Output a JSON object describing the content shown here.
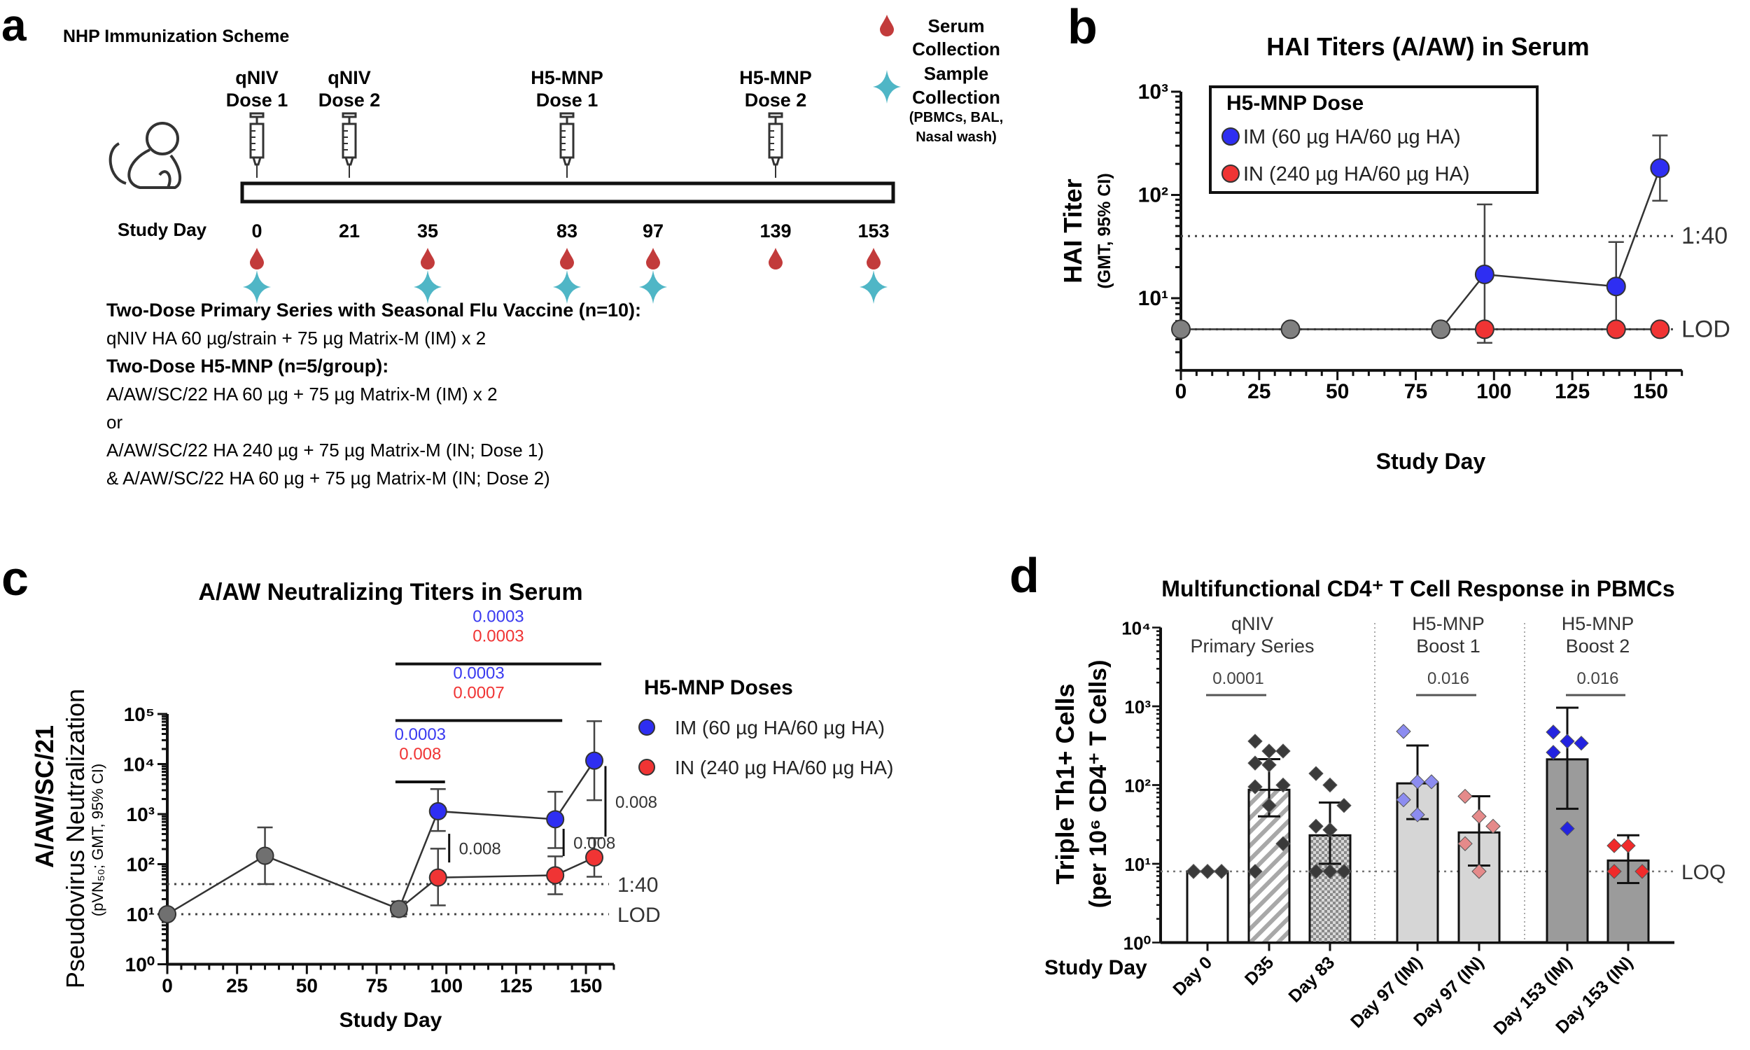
{
  "panel_a": {
    "label": "a",
    "title": "NHP Immunization Scheme",
    "doses": [
      {
        "line1": "qNIV",
        "line2": "Dose 1",
        "day": 0
      },
      {
        "line1": "qNIV",
        "line2": "Dose 2",
        "day": 21
      },
      {
        "line1": "H5-MNP",
        "line2": "Dose 1",
        "day": 83
      },
      {
        "line1": "H5-MNP",
        "line2": "Dose 2",
        "day": 139
      }
    ],
    "study_day_label": "Study Day",
    "days": [
      {
        "day": "0",
        "serum": true,
        "sample": true
      },
      {
        "day": "21",
        "serum": false,
        "sample": false
      },
      {
        "day": "35",
        "serum": true,
        "sample": true
      },
      {
        "day": "83",
        "serum": true,
        "sample": true
      },
      {
        "day": "97",
        "serum": true,
        "sample": true
      },
      {
        "day": "139",
        "serum": true,
        "sample": false
      },
      {
        "day": "153",
        "serum": true,
        "sample": true
      }
    ],
    "legend": {
      "serum": [
        "Serum",
        "Collection"
      ],
      "sample": [
        "Sample",
        "Collection",
        "(PBMCs, BAL,",
        "Nasal wash)"
      ]
    },
    "description": [
      {
        "text": "Two-Dose Primary Series with Seasonal Flu Vaccine (n=10):",
        "bold": true
      },
      {
        "text": "qNIV HA 60 µg/strain + 75 µg Matrix-M (IM) x 2",
        "bold": false
      },
      {
        "text": "Two-Dose H5-MNP (n=5/group):",
        "bold": true
      },
      {
        "text": "A/AW/SC/22 HA 60 µg + 75 µg Matrix-M (IM) x 2",
        "bold": false
      },
      {
        "text": "or",
        "bold": false
      },
      {
        "text": "A/AW/SC/22 HA 240 µg + 75 µg Matrix-M (IN; Dose 1)",
        "bold": false
      },
      {
        "text": "& A/AW/SC/22 HA 60 µg + 75 µg Matrix-M (IN; Dose 2)",
        "bold": false
      }
    ],
    "colors": {
      "serum": "#c23b3b",
      "sample": "#4fb6c6"
    }
  },
  "chart_data": [
    {
      "panel": "b",
      "type": "line",
      "title": "HAI Titers (A/AW) in Serum",
      "xlabel": "Study Day",
      "ylabel": "HAI Titer",
      "ylabel_sub": "(GMT, 95% CI)",
      "xlim": [
        0,
        160
      ],
      "ylim": [
        2,
        1000
      ],
      "yscale": "log",
      "xticks": [
        0,
        25,
        50,
        75,
        100,
        125,
        150
      ],
      "xtick_labels": [
        "0",
        "25",
        "50",
        "75",
        "100",
        "125",
        "150"
      ],
      "yticks": [
        10,
        100,
        1000
      ],
      "ytick_labels": [
        "10¹",
        "10²",
        "10³"
      ],
      "grid": false,
      "reference_lines": [
        {
          "value": 40,
          "label": "1:40"
        },
        {
          "value": 5,
          "label": "LOD"
        }
      ],
      "legend": {
        "title": "H5-MNP Dose",
        "placement": "top-left"
      },
      "series": [
        {
          "key": "baseline",
          "color": "#808080",
          "x": [
            0,
            35,
            83
          ],
          "y": [
            5,
            5,
            5
          ],
          "err_low": [
            null,
            null,
            null
          ],
          "err_high": [
            null,
            null,
            null
          ]
        },
        {
          "key": "IM",
          "name": "IM (60 µg HA/60 µg HA)",
          "color": "#2e2ef2",
          "x": [
            97,
            139,
            153
          ],
          "y": [
            17,
            13,
            182
          ],
          "err_low": [
            3.7,
            5,
            88
          ],
          "err_high": [
            81,
            35,
            377
          ]
        },
        {
          "key": "IN",
          "name": "IN (240 µg HA/60 µg HA)",
          "color": "#f03434",
          "x": [
            97,
            139,
            153
          ],
          "y": [
            5,
            5,
            5
          ],
          "err_low": [
            null,
            null,
            null
          ],
          "err_high": [
            null,
            null,
            null
          ]
        }
      ]
    },
    {
      "panel": "c",
      "type": "line",
      "title": "A/AW Neutralizing Titers in Serum",
      "xlabel": "Study Day",
      "ylabel": "A/AW/SC/21",
      "ylabel2": "Pseudovirus Neutralization",
      "ylabel_sub": "(pVN₅₀; GMT, 95% CI)",
      "xlim": [
        0,
        160
      ],
      "ylim": [
        1,
        100000
      ],
      "yscale": "log",
      "xticks": [
        0,
        25,
        50,
        75,
        100,
        125,
        150
      ],
      "xtick_labels": [
        "0",
        "25",
        "50",
        "75",
        "100",
        "125",
        "150"
      ],
      "yticks": [
        1,
        10,
        100,
        1000,
        10000,
        100000
      ],
      "ytick_labels": [
        "10⁰",
        "10¹",
        "10²",
        "10³",
        "10⁴",
        "10⁵"
      ],
      "grid": false,
      "reference_lines": [
        {
          "value": 40,
          "label": "1:40"
        },
        {
          "value": 10,
          "label": "LOD"
        }
      ],
      "legend": {
        "title": "H5-MNP Doses",
        "placement": "right"
      },
      "series": [
        {
          "key": "baseline",
          "color": "#707070",
          "x": [
            0,
            35,
            83
          ],
          "y": [
            10,
            147,
            12.7
          ],
          "err_low": [
            null,
            40,
            9
          ],
          "err_high": [
            null,
            543,
            18
          ]
        },
        {
          "key": "IM",
          "name": "IM (60 µg HA/60 µg HA)",
          "color": "#2e2ef2",
          "x": [
            97,
            139,
            153
          ],
          "y": [
            1140,
            790,
            11700
          ],
          "err_low": [
            460,
            210,
            1900
          ],
          "err_high": [
            3160,
            2790,
            72000
          ]
        },
        {
          "key": "IN",
          "name": "IN (240 µg HA/60 µg HA)",
          "color": "#f03434",
          "x": [
            97,
            139,
            153
          ],
          "y": [
            54,
            60,
            136
          ],
          "err_low": [
            15,
            25,
            56
          ],
          "err_high": [
            204,
            143,
            330
          ]
        }
      ],
      "brackets": [
        {
          "x1": 83,
          "x2": 153,
          "y": 1000000,
          "p": [
            {
              "text": "0.0003",
              "color": "#3a3af0"
            },
            {
              "text": "0.0003",
              "color": "#f03434"
            }
          ]
        },
        {
          "x1": 83,
          "x2": 139,
          "y": 74000,
          "p": [
            {
              "text": "0.0003",
              "color": "#3a3af0"
            },
            {
              "text": "0.0007",
              "color": "#f03434"
            }
          ]
        },
        {
          "x1": 83,
          "x2": 97,
          "y": 4400,
          "p": [
            {
              "text": "0.0003",
              "color": "#3a3af0"
            },
            {
              "text": "0.008",
              "color": "#f03434"
            }
          ]
        }
      ],
      "vertical_brackets": [
        {
          "x": 101,
          "y1": 108,
          "y2": 405,
          "text": "0.008"
        },
        {
          "x": 142,
          "y1": 145,
          "y2": 508,
          "text": "0.008"
        },
        {
          "x": 157,
          "y1": 355,
          "y2": 9100,
          "text": "0.008"
        }
      ]
    },
    {
      "panel": "d",
      "type": "bar",
      "title": "Multifunctional CD4⁺ T Cell Response in PBMCs",
      "xlabel": "Study Day",
      "ylabel": "Triple Th1+ Cells",
      "ylabel_sub": "(per 10⁶ CD4⁺ T Cells)",
      "ylim": [
        1,
        10000
      ],
      "yscale": "log",
      "yticks": [
        1,
        10,
        100,
        1000,
        10000
      ],
      "ytick_labels": [
        "10⁰",
        "10¹",
        "10²",
        "10³",
        "10⁴"
      ],
      "categories": [
        "Day 0",
        "D35",
        "Day 83",
        "Day 97 (IM)",
        "Day 97 (IN)",
        "Day 153 (IM)",
        "Day 153 (IN)"
      ],
      "values": [
        8,
        87,
        23,
        105,
        25,
        212,
        11
      ],
      "err_low": [
        8,
        40,
        10,
        37,
        9.5,
        50,
        5.7
      ],
      "err_high": [
        8,
        213,
        60,
        318,
        72,
        960,
        23
      ],
      "bar_fills": [
        "white",
        "hatch",
        "checker",
        "#d6d6d6",
        "#d6d6d6",
        "#9b9b9b",
        "#9b9b9b"
      ],
      "point_colors": [
        "#3a3a3a",
        "#3a3a3a",
        "#3a3a3a",
        "#8c8cf0",
        "#e58a8a",
        "#2323e0",
        "#f02a2a"
      ],
      "points": [
        [
          8,
          8,
          8,
          8,
          8,
          8,
          8,
          8,
          8,
          8
        ],
        [
          360,
          270,
          270,
          190,
          180,
          100,
          95,
          55,
          18,
          8
        ],
        [
          140,
          100,
          55,
          30,
          27,
          8,
          8,
          8,
          8,
          8
        ],
        [
          480,
          110,
          110,
          65,
          42
        ],
        [
          72,
          40,
          30,
          18,
          8
        ],
        [
          470,
          360,
          340,
          260,
          28
        ],
        [
          17,
          17,
          8,
          8
        ]
      ],
      "reference_lines": [
        {
          "value": 8,
          "label": "LOQ"
        }
      ],
      "groups": [
        {
          "line1": "qNIV",
          "line2": "Primary Series",
          "p": "0.0001",
          "from": 0,
          "to": 1
        },
        {
          "line1": "H5-MNP",
          "line2": "Boost 1",
          "p": "0.016",
          "from": 3,
          "to": 4
        },
        {
          "line1": "H5-MNP",
          "line2": "Boost 2",
          "p": "0.016",
          "from": 5,
          "to": 6
        }
      ]
    }
  ]
}
